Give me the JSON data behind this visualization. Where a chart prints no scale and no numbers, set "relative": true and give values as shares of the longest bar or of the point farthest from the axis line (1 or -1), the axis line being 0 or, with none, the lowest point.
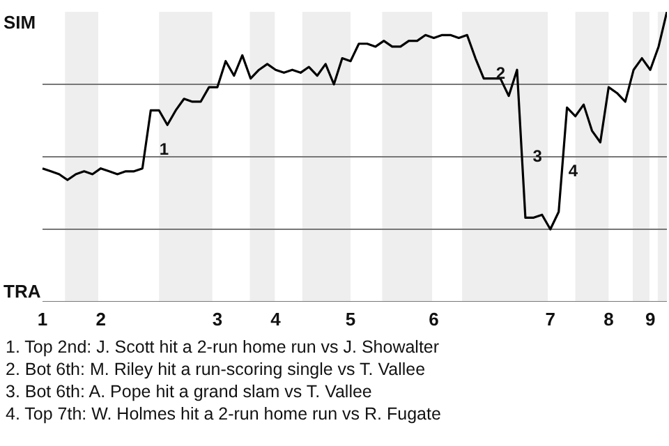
{
  "chart_data": {
    "type": "line",
    "categories": [
      "1",
      null,
      null,
      null,
      null,
      null,
      null,
      "2",
      null,
      null,
      null,
      null,
      null,
      null,
      null,
      null,
      null,
      null,
      null,
      null,
      null,
      "3",
      null,
      null,
      null,
      null,
      null,
      null,
      "4",
      null,
      null,
      null,
      null,
      null,
      null,
      null,
      null,
      "5",
      null,
      null,
      null,
      null,
      null,
      null,
      null,
      null,
      null,
      "6",
      null,
      null,
      null,
      null,
      null,
      null,
      null,
      null,
      null,
      null,
      null,
      null,
      null,
      "7",
      null,
      null,
      null,
      null,
      null,
      null,
      "8",
      null,
      null,
      null,
      null,
      "9",
      null,
      null
    ],
    "relative": true,
    "series": [
      {
        "color": "#000000",
        "values": [
          0.46,
          0.45,
          0.44,
          0.42,
          0.44,
          0.45,
          0.44,
          0.46,
          0.45,
          0.44,
          0.45,
          0.45,
          0.46,
          0.66,
          0.66,
          0.61,
          0.66,
          0.7,
          0.69,
          0.69,
          0.74,
          0.74,
          0.83,
          0.78,
          0.85,
          0.77,
          0.8,
          0.82,
          0.8,
          0.79,
          0.8,
          0.79,
          0.81,
          0.78,
          0.82,
          0.75,
          0.84,
          0.83,
          0.89,
          0.89,
          0.88,
          0.9,
          0.88,
          0.88,
          0.9,
          0.9,
          0.92,
          0.91,
          0.92,
          0.92,
          0.91,
          0.92,
          0.84,
          0.77,
          0.77,
          0.77,
          0.71,
          0.8,
          0.29,
          0.29,
          0.3,
          0.25,
          0.31,
          0.67,
          0.64,
          0.68,
          0.59,
          0.55,
          0.74,
          0.72,
          0.69,
          0.8,
          0.84,
          0.8,
          0.88,
          1
        ]
      }
    ],
    "grid": false,
    "marker": "none",
    "line_style": "solid",
    "annotations": [
      "1",
      "2",
      "3",
      "4",
      "SIM",
      "TRA",
      "1. Top 2nd: J. Scott hit a 2-run home run vs J. Showalter",
      "2. Bot 6th: M. Riley hit a run-scoring single vs T. Vallee",
      "3. Bot 6th: A. Pope hit a grand slam vs T. Vallee",
      "4. Top 7th: W. Holmes hit a 2-run home run vs R. Fugate"
    ]
  }
}
